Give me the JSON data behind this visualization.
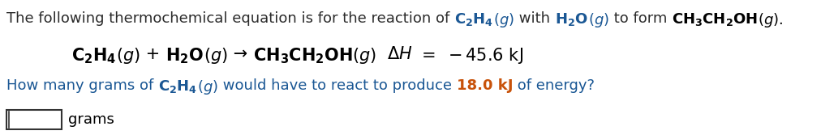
{
  "background_color": "#ffffff",
  "blue": "#1a5794",
  "black": "#1a1a1a",
  "orange_blue": "#1a5794",
  "figsize": [
    10.28,
    1.72
  ],
  "dpi": 100,
  "line1_text": "The following thermochemical equation is for the reaction of ",
  "line1_c2h4": "C₂H₄(g)",
  "line1_with": " with ",
  "line1_h2o": "H₂O(g)",
  "line1_toform": " to form ",
  "line1_product": "CH₃CH₂OH(g).",
  "eq_line": "C₂H₄(g) + H₂O(g) → CH₃CH₂OH(g)  ΔH = −45.6 kJ",
  "q_text": "How many grams of ",
  "q_c2h4": "C₂H₄(g)",
  "q_rest": " would have to react to produce ",
  "q_value": "18.0 kJ",
  "q_end": " of energy?",
  "ans_label": "grams",
  "fs_line1": 13.0,
  "fs_eq": 15.0,
  "fs_q": 13.0
}
